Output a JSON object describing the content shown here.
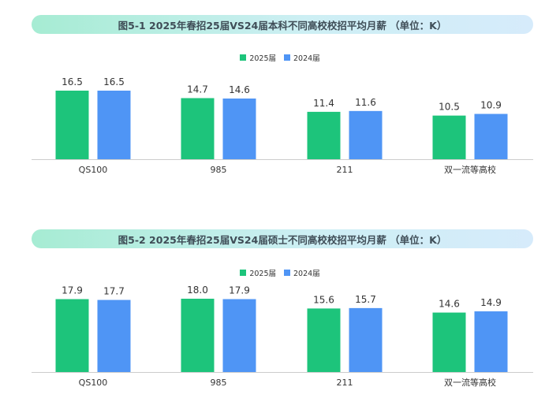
{
  "colors": {
    "series_2025": "#1dc47b",
    "series_2024": "#4f95f5",
    "axis": "#cccccc"
  },
  "chart_data": [
    {
      "type": "bar",
      "title": "图5-1 2025年春招25届VS24届本科不同高校校招平均月薪 （单位：K）",
      "categories": [
        "QS100",
        "985",
        "211",
        "双一流等高校"
      ],
      "series": [
        {
          "name": "2025届",
          "values": [
            16.5,
            14.7,
            11.4,
            10.5
          ]
        },
        {
          "name": "2024届",
          "values": [
            16.5,
            14.6,
            11.6,
            10.9
          ]
        }
      ],
      "ylim": [
        0,
        16.5
      ],
      "legend_position": "top-center",
      "grid": false
    },
    {
      "type": "bar",
      "title": "图5-2 2025年春招25届VS24届硕士不同高校校招平均月薪 （单位：K）",
      "categories": [
        "QS100",
        "985",
        "211",
        "双一流等高校"
      ],
      "series": [
        {
          "name": "2025届",
          "values": [
            17.9,
            18.0,
            15.6,
            14.6
          ]
        },
        {
          "name": "2024届",
          "values": [
            17.7,
            17.9,
            15.7,
            14.9
          ]
        }
      ],
      "ylim": [
        0,
        18.0
      ],
      "legend_position": "top-center",
      "grid": false
    }
  ]
}
